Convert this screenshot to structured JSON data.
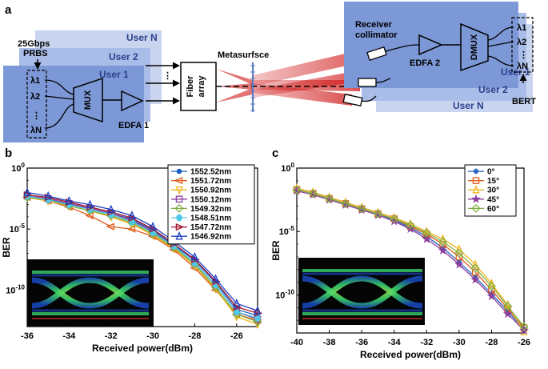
{
  "panel_a": {
    "letter": "a",
    "tx_users": [
      "User N",
      "User 2",
      "User 1"
    ],
    "rx_users": [
      "User 1",
      "User 2",
      "User N"
    ],
    "prbs_line1": "25Gbps",
    "prbs_line2": "PRBS",
    "mux": "MUX",
    "edfa1": "EDFA 1",
    "fiber_line1": "Fiber",
    "fiber_line2": "array",
    "metasurface": "Metasurfsce",
    "receiver_line1": "Receiver",
    "receiver_line2": "collimator",
    "edfa2": "EDFA 2",
    "dmux": "DMUX",
    "bert": "BERT",
    "lambdas": [
      "λ1",
      "λ2",
      "λN"
    ]
  },
  "panel_b": {
    "letter": "b"
  },
  "panel_c": {
    "letter": "c"
  },
  "chart_data": [
    {
      "type": "line",
      "xlabel": "Received power(dBm)",
      "ylabel": "BER",
      "xlim": [
        -36,
        -25
      ],
      "ylim_log10": [
        -13,
        0
      ],
      "xticks": [
        -36,
        -34,
        -32,
        -30,
        -28,
        -26
      ],
      "yticks": [
        "10^0",
        "10^-5",
        "10^-10"
      ],
      "legend_position": "top-right",
      "x": [
        -36,
        -35,
        -34,
        -33,
        -32,
        -31,
        -30,
        -29,
        -28,
        -27,
        -26,
        -25
      ],
      "series": [
        {
          "name": "1552.52nm",
          "color": "#1f5fbf",
          "marker": "circle",
          "log10_ber": [
            -2.3,
            -2.5,
            -3.0,
            -3.3,
            -3.7,
            -4.2,
            -5.1,
            -6.3,
            -7.6,
            -9.4,
            -11.6,
            -12.1
          ]
        },
        {
          "name": "1551.72nm",
          "color": "#e05a1a",
          "marker": "triangle-left",
          "log10_ber": [
            -2.4,
            -2.7,
            -3.2,
            -3.9,
            -4.8,
            -5.0,
            -5.6,
            -6.7,
            -8.2,
            -10.0,
            -12.0,
            -12.5
          ]
        },
        {
          "name": "1550.92nm",
          "color": "#f2b41c",
          "marker": "triangle-down",
          "log10_ber": [
            -2.4,
            -2.7,
            -3.1,
            -3.5,
            -4.0,
            -4.6,
            -5.5,
            -6.6,
            -8.0,
            -9.9,
            -12.2,
            -12.8
          ]
        },
        {
          "name": "1550.12nm",
          "color": "#8b3f9c",
          "marker": "square",
          "log10_ber": [
            -2.3,
            -2.5,
            -2.9,
            -3.3,
            -3.7,
            -4.3,
            -5.2,
            -6.4,
            -7.8,
            -9.6,
            -11.8,
            -12.4
          ]
        },
        {
          "name": "1549.32nm",
          "color": "#7fb040",
          "marker": "diamond",
          "log10_ber": [
            -2.4,
            -2.6,
            -3.1,
            -3.5,
            -3.9,
            -4.5,
            -5.4,
            -6.5,
            -7.9,
            -9.8,
            -12.0,
            -12.6
          ]
        },
        {
          "name": "1548.51nm",
          "color": "#4ec8e6",
          "marker": "hexagon",
          "log10_ber": [
            -2.3,
            -2.6,
            -3.0,
            -3.4,
            -3.8,
            -4.4,
            -5.3,
            -6.4,
            -7.8,
            -9.6,
            -11.8,
            -12.3
          ]
        },
        {
          "name": "1547.72nm",
          "color": "#a2142f",
          "marker": "triangle-right",
          "log10_ber": [
            -2.2,
            -2.4,
            -2.8,
            -3.2,
            -3.6,
            -4.1,
            -5.0,
            -6.2,
            -7.5,
            -9.3,
            -11.4,
            -11.9
          ]
        },
        {
          "name": "1546.92nm",
          "color": "#1f3fbf",
          "marker": "triangle-up",
          "log10_ber": [
            -2.0,
            -2.3,
            -2.7,
            -3.0,
            -3.4,
            -3.9,
            -4.8,
            -6.0,
            -7.3,
            -9.1,
            -11.1,
            -11.7
          ]
        }
      ]
    },
    {
      "type": "line",
      "xlabel": "Received power(dBm)",
      "ylabel": "BER",
      "xlim": [
        -40,
        -26
      ],
      "ylim_log10": [
        -13,
        0
      ],
      "xticks": [
        -40,
        -38,
        -36,
        -34,
        -32,
        -30,
        -28,
        -26
      ],
      "yticks": [
        "10^0",
        "10^-5",
        "10^-10"
      ],
      "legend_position": "top-right",
      "x": [
        -40,
        -39,
        -38,
        -37,
        -36,
        -35,
        -34,
        -33,
        -32,
        -31,
        -30,
        -29,
        -28,
        -27,
        -26
      ],
      "series": [
        {
          "name": "0°",
          "color": "#1f5fbf",
          "marker": "asterisk",
          "log10_ber": [
            -1.7,
            -2.0,
            -2.4,
            -2.8,
            -3.2,
            -3.6,
            -4.1,
            -4.7,
            -5.4,
            -6.3,
            -7.4,
            -8.6,
            -9.9,
            -11.3,
            -12.7
          ]
        },
        {
          "name": "15°",
          "color": "#e05a1a",
          "marker": "square",
          "log10_ber": [
            -1.7,
            -2.0,
            -2.4,
            -2.8,
            -3.2,
            -3.6,
            -4.0,
            -4.6,
            -5.2,
            -6.0,
            -7.0,
            -8.2,
            -9.6,
            -11.1,
            -12.6
          ]
        },
        {
          "name": "30°",
          "color": "#f2b41c",
          "marker": "triangle-up",
          "log10_ber": [
            -1.6,
            -1.9,
            -2.3,
            -2.7,
            -3.1,
            -3.5,
            -3.9,
            -4.4,
            -5.0,
            -5.6,
            -6.4,
            -7.6,
            -9.1,
            -10.8,
            -12.9
          ]
        },
        {
          "name": "45°",
          "color": "#8b3f9c",
          "marker": "star",
          "log10_ber": [
            -1.8,
            -2.1,
            -2.5,
            -2.9,
            -3.3,
            -3.7,
            -4.2,
            -4.8,
            -5.6,
            -6.5,
            -7.6,
            -8.8,
            -10.1,
            -11.5,
            -12.8
          ]
        },
        {
          "name": "60°",
          "color": "#7fb040",
          "marker": "diamond",
          "log10_ber": [
            -1.7,
            -2.0,
            -2.4,
            -2.8,
            -3.2,
            -3.6,
            -4.0,
            -4.5,
            -5.1,
            -5.8,
            -6.7,
            -7.9,
            -9.3,
            -10.9,
            -12.5
          ]
        }
      ]
    }
  ]
}
